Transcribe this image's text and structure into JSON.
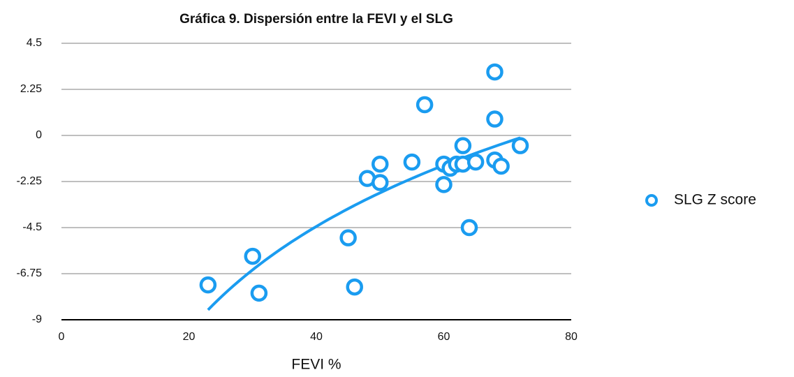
{
  "chart_data": {
    "type": "scatter",
    "title": "Gráfica 9. Dispersión entre la FEVI y el SLG",
    "x_label": "FEVI %",
    "series": [
      {
        "name": "SLG Z score",
        "color": "#1a9cf0",
        "x": [
          23,
          30,
          31,
          45,
          46,
          48,
          50,
          50,
          55,
          57,
          60,
          60,
          61,
          62,
          63,
          63,
          64,
          65,
          68,
          68,
          68,
          69,
          72
        ],
        "values": [
          -7.3,
          -5.9,
          -7.7,
          -5.0,
          -7.4,
          -2.1,
          -1.4,
          -2.3,
          -1.3,
          1.5,
          -1.4,
          -2.4,
          -1.6,
          -1.4,
          -1.4,
          -0.5,
          -4.5,
          -1.3,
          3.1,
          0.8,
          -1.2,
          -1.5,
          -0.5
        ]
      }
    ],
    "trendline": "logarithmic",
    "xlim": [
      0,
      80
    ],
    "xticks": [
      0,
      20,
      40,
      60,
      80
    ],
    "ylim": [
      -9,
      4.5
    ],
    "yticks": [
      4.5,
      2.25,
      0,
      -2.25,
      -4.5,
      -6.75,
      -9
    ],
    "grid": true,
    "legend": "right"
  }
}
